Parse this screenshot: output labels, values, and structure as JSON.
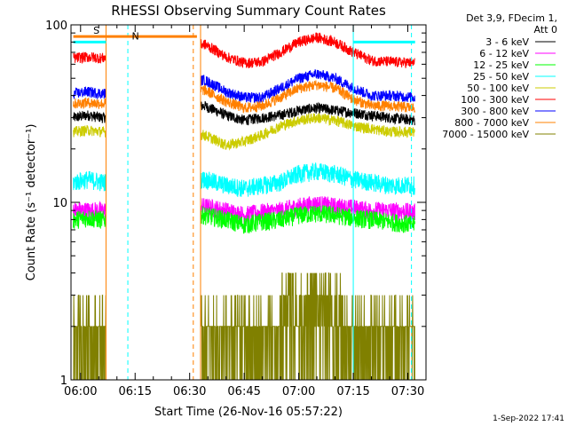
{
  "chart_data": {
    "type": "line",
    "title": "RHESSI Observing Summary Count Rates",
    "xlabel": "Start Time (26-Nov-16 05:57:22)",
    "ylabel": "Count Rate (s⁻¹ detector⁻¹)",
    "yscale": "log",
    "xlim": [
      "05:57:22",
      "07:35:00"
    ],
    "ylim": [
      1,
      100
    ],
    "x_ticks": [
      "06:00",
      "06:15",
      "06:30",
      "06:45",
      "07:00",
      "07:15",
      "07:30"
    ],
    "y_ticks": [
      "1",
      "10",
      "100"
    ],
    "legend_header": [
      "Det 3,9, FDecim 1,",
      "Att 0"
    ],
    "legend_placement": "right",
    "data_gaps": [
      [
        "06:07",
        "06:33"
      ]
    ],
    "series": [
      {
        "name": "3 - 6 keV",
        "color": "#000000",
        "x": [
          "05:58",
          "06:02",
          "06:06",
          "06:34",
          "06:40",
          "06:45",
          "06:50",
          "06:55",
          "07:00",
          "07:05",
          "07:10",
          "07:15",
          "07:20",
          "07:25",
          "07:32"
        ],
        "values": [
          30,
          31,
          30,
          35,
          31,
          29,
          30,
          31,
          33,
          34,
          33,
          32,
          31,
          30,
          29
        ]
      },
      {
        "name": "6 - 12 keV",
        "color": "#ff00ff",
        "x": [
          "05:58",
          "06:02",
          "06:06",
          "06:34",
          "06:40",
          "06:45",
          "06:50",
          "06:55",
          "07:00",
          "07:05",
          "07:10",
          "07:15",
          "07:20",
          "07:25",
          "07:32"
        ],
        "values": [
          9,
          9,
          9,
          9.5,
          9,
          8.5,
          8.8,
          9,
          9.5,
          9.8,
          9.5,
          9.3,
          9,
          9,
          8.8
        ]
      },
      {
        "name": "12 - 25 keV",
        "color": "#00ff00",
        "x": [
          "05:58",
          "06:02",
          "06:06",
          "06:34",
          "06:40",
          "06:45",
          "06:50",
          "06:55",
          "07:00",
          "07:05",
          "07:10",
          "07:15",
          "07:20",
          "07:25",
          "07:32"
        ],
        "values": [
          8,
          8.2,
          8,
          8.5,
          8,
          7.5,
          7.8,
          8,
          8.5,
          8.7,
          8.5,
          8.2,
          8,
          7.8,
          7.5
        ]
      },
      {
        "name": "25 - 50 keV",
        "color": "#00ffff",
        "x": [
          "05:58",
          "06:02",
          "06:06",
          "06:34",
          "06:40",
          "06:45",
          "06:50",
          "06:55",
          "07:00",
          "07:05",
          "07:10",
          "07:15",
          "07:20",
          "07:25",
          "07:32"
        ],
        "values": [
          13,
          13.5,
          13,
          13.5,
          12.5,
          12,
          12.5,
          13,
          14.5,
          15,
          14.5,
          13.5,
          13,
          12.5,
          12.5
        ]
      },
      {
        "name": "50 - 100 keV",
        "color": "#cccc00",
        "x": [
          "05:58",
          "06:02",
          "06:06",
          "06:34",
          "06:40",
          "06:45",
          "06:50",
          "06:55",
          "07:00",
          "07:05",
          "07:10",
          "07:15",
          "07:20",
          "07:25",
          "07:32"
        ],
        "values": [
          25,
          25.5,
          25,
          24,
          21,
          22,
          24,
          27,
          29,
          30,
          29,
          27,
          26,
          25,
          25
        ]
      },
      {
        "name": "100 - 300 keV",
        "color": "#ff0000",
        "x": [
          "05:58",
          "06:02",
          "06:06",
          "06:34",
          "06:40",
          "06:45",
          "06:50",
          "06:55",
          "07:00",
          "07:05",
          "07:10",
          "07:15",
          "07:20",
          "07:25",
          "07:32"
        ],
        "values": [
          65,
          66,
          65,
          78,
          66,
          61,
          62,
          70,
          80,
          85,
          80,
          70,
          63,
          62,
          61
        ]
      },
      {
        "name": "300 - 800 keV",
        "color": "#0000ff",
        "x": [
          "05:58",
          "06:02",
          "06:06",
          "06:34",
          "06:40",
          "06:45",
          "06:50",
          "06:55",
          "07:00",
          "07:05",
          "07:10",
          "07:15",
          "07:20",
          "07:25",
          "07:32"
        ],
        "values": [
          41,
          42,
          41,
          49,
          42,
          39,
          39,
          44,
          50,
          53,
          50,
          44,
          40,
          40,
          39
        ]
      },
      {
        "name": "800 - 7000 keV",
        "color": "#ff8000",
        "x": [
          "05:58",
          "06:02",
          "06:06",
          "06:34",
          "06:40",
          "06:45",
          "06:50",
          "06:55",
          "07:00",
          "07:05",
          "07:10",
          "07:15",
          "07:20",
          "07:25",
          "07:32"
        ],
        "values": [
          36,
          36.5,
          36,
          43,
          37,
          34,
          35,
          39,
          44,
          46,
          44,
          38,
          35,
          35,
          34
        ]
      },
      {
        "name": "7000 - 15000 keV",
        "color": "#808000",
        "x": [
          "05:58",
          "06:02",
          "06:06",
          "06:34",
          "06:40",
          "06:45",
          "06:50",
          "06:55",
          "07:00",
          "07:05",
          "07:10",
          "07:15",
          "07:20",
          "07:25",
          "07:32"
        ],
        "values": [
          1.6,
          1.5,
          1.6,
          1.7,
          1.5,
          1.5,
          1.6,
          2,
          2.4,
          2.6,
          2.2,
          1.7,
          1.5,
          1.5,
          1.5
        ]
      }
    ],
    "markers": [
      {
        "label": "S",
        "color": "#ff8000",
        "x_start": "05:58",
        "x_end": "06:32",
        "level": 86
      },
      {
        "label": "N",
        "color": "#00ffff",
        "x_start": "05:58",
        "x_end": "06:07",
        "level": 80
      },
      {
        "label": "",
        "color": "#00ffff",
        "x_start": "07:15",
        "x_end": "07:32",
        "level": 80
      }
    ],
    "vertical_lines": [
      {
        "x": "06:07",
        "color": "#ff8000",
        "style": "solid"
      },
      {
        "x": "06:13",
        "color": "#00ffff",
        "style": "dashed"
      },
      {
        "x": "06:31",
        "color": "#ff8000",
        "style": "dashed"
      },
      {
        "x": "06:33",
        "color": "#ff8000",
        "style": "solid"
      },
      {
        "x": "07:15",
        "color": "#00ffff",
        "style": "solid"
      },
      {
        "x": "07:31",
        "color": "#00ffff",
        "style": "dashed"
      }
    ],
    "grid": false
  },
  "footer": {
    "timestamp": "1-Sep-2022 17:41"
  }
}
